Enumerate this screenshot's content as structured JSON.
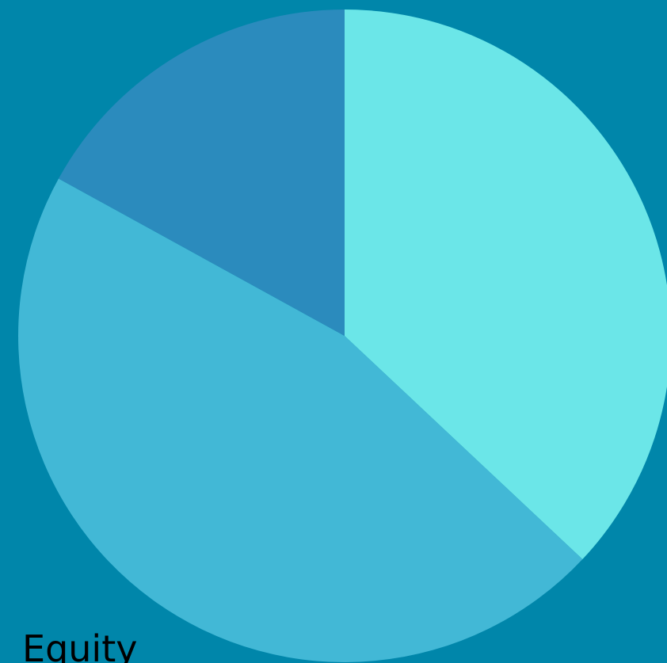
{
  "chart_data": {
    "type": "pie",
    "categories": [
      "Equity",
      null,
      null
    ],
    "values": [
      37,
      46,
      17
    ],
    "colors": [
      "#6be6e8",
      "#42b8d6",
      "#2b8bbd"
    ]
  }
}
